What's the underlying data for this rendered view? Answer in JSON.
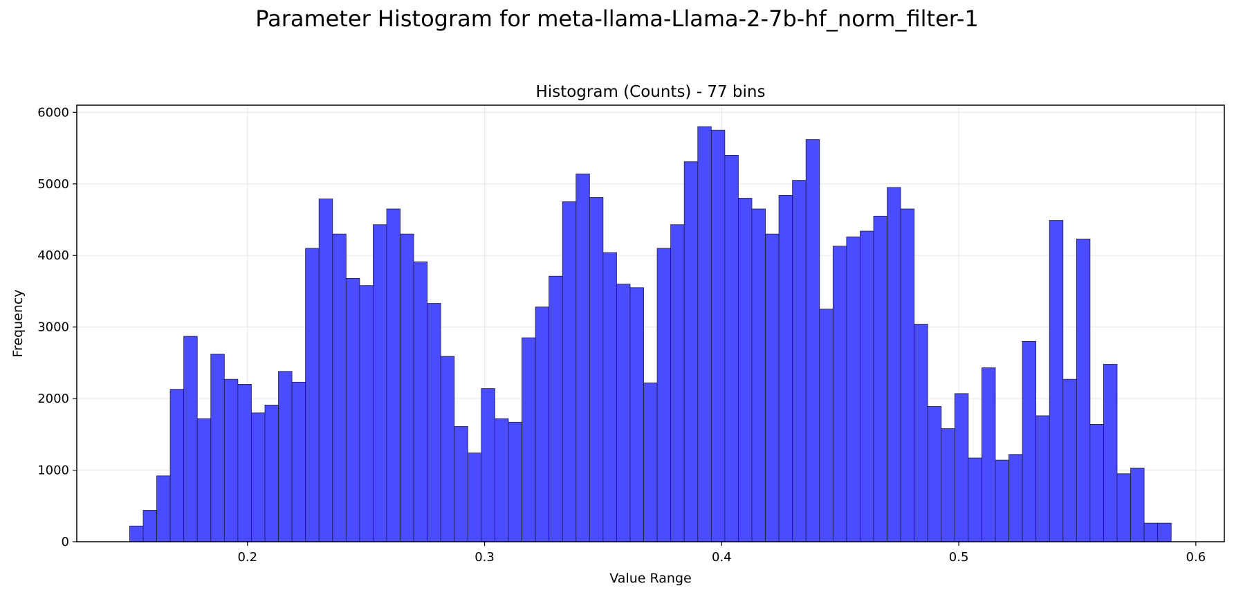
{
  "suptitle": "Parameter Histogram for meta-llama-Llama-2-7b-hf_norm_filter-1",
  "chart_data": {
    "type": "bar",
    "title": "Histogram (Counts) - 77 bins",
    "xlabel": "Value Range",
    "ylabel": "Frequency",
    "xlim": [
      0.128,
      0.612
    ],
    "ylim": [
      0,
      6100
    ],
    "xticks": [
      0.2,
      0.3,
      0.4,
      0.5,
      0.6
    ],
    "xtick_labels": [
      "0.2",
      "0.3",
      "0.4",
      "0.5",
      "0.6"
    ],
    "yticks": [
      0,
      1000,
      2000,
      3000,
      4000,
      5000,
      6000
    ],
    "ytick_labels": [
      "0",
      "1000",
      "2000",
      "3000",
      "4000",
      "5000",
      "6000"
    ],
    "grid": true,
    "bin_start": 0.1503,
    "bin_end": 0.5896,
    "values": [
      220,
      440,
      920,
      2130,
      2870,
      1720,
      2620,
      2270,
      2200,
      1800,
      1910,
      2380,
      2230,
      4100,
      4790,
      4300,
      3680,
      3580,
      4430,
      4650,
      4300,
      3910,
      3330,
      2590,
      1610,
      1240,
      2140,
      1720,
      1670,
      2850,
      3280,
      3710,
      4750,
      5140,
      4810,
      4040,
      3600,
      3550,
      2220,
      4100,
      4430,
      5310,
      5800,
      5750,
      5400,
      4800,
      4650,
      4300,
      4840,
      5050,
      5620,
      3250,
      4130,
      4260,
      4340,
      4550,
      4950,
      4650,
      3040,
      1890,
      1580,
      2070,
      1170,
      2430,
      1140,
      1220,
      2800,
      1760,
      4490,
      2270,
      4230,
      1640,
      2480,
      950,
      1030,
      260,
      260
    ],
    "bar_color": "#4c4cff",
    "edge_color": "#1a1a4d"
  }
}
